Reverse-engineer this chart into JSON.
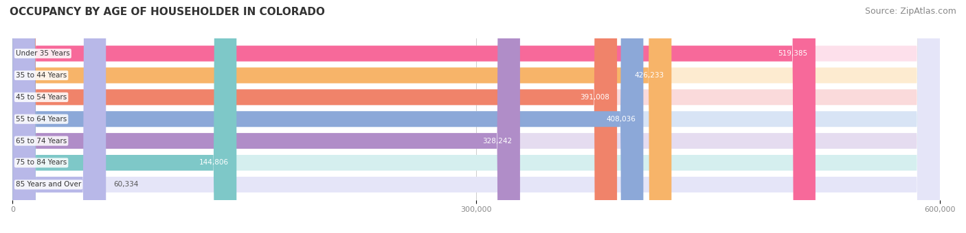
{
  "title": "OCCUPANCY BY AGE OF HOUSEHOLDER IN COLORADO",
  "source": "Source: ZipAtlas.com",
  "categories": [
    "Under 35 Years",
    "35 to 44 Years",
    "45 to 54 Years",
    "55 to 64 Years",
    "65 to 74 Years",
    "75 to 84 Years",
    "85 Years and Over"
  ],
  "values": [
    519385,
    426233,
    391008,
    408036,
    328242,
    144806,
    60334
  ],
  "bar_colors": [
    "#F7699A",
    "#F7B469",
    "#F0836A",
    "#8CA8D8",
    "#B08DC8",
    "#7EC8C8",
    "#B8B8E8"
  ],
  "bar_bg_colors": [
    "#FDE0EB",
    "#FDEBD0",
    "#FADADB",
    "#D8E4F5",
    "#E5DCF0",
    "#D5EFEF",
    "#E5E5F8"
  ],
  "xlim": [
    0,
    600000
  ],
  "xticks": [
    0,
    300000,
    600000
  ],
  "xticklabels": [
    "0",
    "300,000",
    "600,000"
  ],
  "value_label_color": "#FFFFFF",
  "background_color": "#FFFFFF",
  "title_fontsize": 11,
  "source_fontsize": 9
}
